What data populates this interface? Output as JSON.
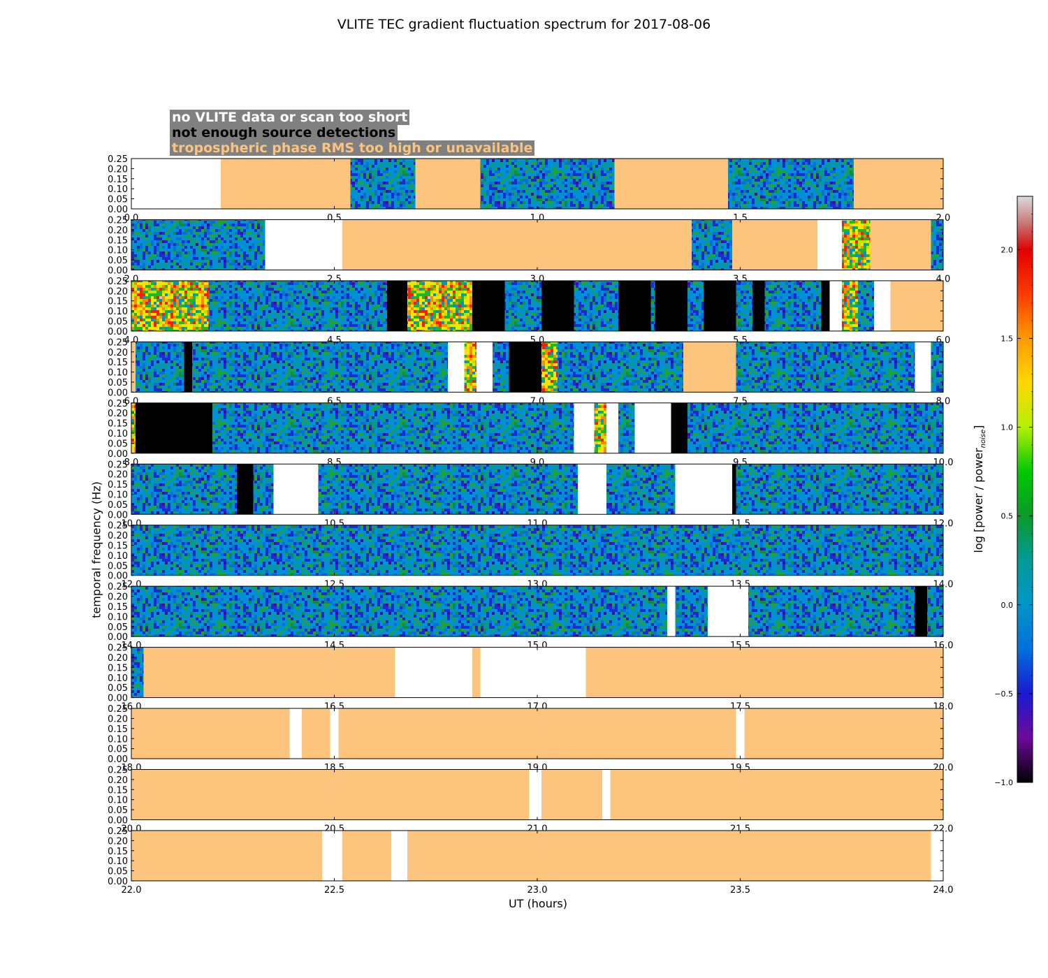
{
  "chart_data": {
    "type": "heatmap",
    "title": "VLITE TEC gradient fluctuation spectrum for 2017-08-06",
    "xlabel": "UT (hours)",
    "ylabel": "temporal frequency (Hz)",
    "colorbar": {
      "label": "log [power / power",
      "label_sub": "noise",
      "label_end": "]",
      "range": [
        -1.0,
        2.3
      ],
      "ticks": [
        "−1.0",
        "−0.5",
        "0.0",
        "0.5",
        "1.0",
        "1.5",
        "2.0"
      ],
      "tick_values": [
        -1.0,
        -0.5,
        0.0,
        0.5,
        1.0,
        1.5,
        2.0
      ]
    },
    "legend": [
      {
        "text": "no VLITE data or scan too short",
        "color": "#ffffff"
      },
      {
        "text": "not enough source detections",
        "color": "#000000"
      },
      {
        "text": "tropospheric phase RMS too high or unavailable",
        "color": "#fdc47d"
      }
    ],
    "yticks": [
      "0.00",
      "0.05",
      "0.10",
      "0.15",
      "0.20",
      "0.25"
    ],
    "ylim": [
      0,
      0.25
    ],
    "panels": [
      {
        "range": [
          0,
          2
        ],
        "xticks": [
          "0.0",
          "0.5",
          "1.0",
          "1.5",
          "2.0"
        ],
        "segments": [
          [
            0,
            0.22,
            "white"
          ],
          [
            0.22,
            0.54,
            "tan"
          ],
          [
            0.54,
            0.7,
            "data"
          ],
          [
            0.7,
            0.86,
            "tan"
          ],
          [
            0.86,
            1.19,
            "data"
          ],
          [
            1.19,
            1.47,
            "tan"
          ],
          [
            1.47,
            1.78,
            "data"
          ],
          [
            1.78,
            2.0,
            "tan"
          ]
        ]
      },
      {
        "range": [
          2,
          4
        ],
        "xticks": [
          "2.0",
          "2.5",
          "3.0",
          "3.5",
          "4.0"
        ],
        "segments": [
          [
            2.0,
            2.33,
            "data"
          ],
          [
            2.33,
            2.52,
            "white"
          ],
          [
            2.52,
            3.38,
            "tan"
          ],
          [
            3.38,
            3.48,
            "data"
          ],
          [
            3.48,
            3.69,
            "tan"
          ],
          [
            3.69,
            3.75,
            "white"
          ],
          [
            3.75,
            3.82,
            "hot"
          ],
          [
            3.82,
            3.97,
            "tan"
          ],
          [
            3.97,
            4.0,
            "data"
          ]
        ]
      },
      {
        "range": [
          4,
          6
        ],
        "xticks": [
          "4.0",
          "4.5",
          "5.0",
          "5.5",
          "6.0"
        ],
        "segments": [
          [
            4.0,
            4.19,
            "hot"
          ],
          [
            4.19,
            4.63,
            "data"
          ],
          [
            4.63,
            4.68,
            "black"
          ],
          [
            4.68,
            4.84,
            "hot"
          ],
          [
            4.84,
            4.92,
            "black"
          ],
          [
            4.92,
            5.01,
            "data"
          ],
          [
            5.01,
            5.09,
            "black"
          ],
          [
            5.09,
            5.2,
            "data"
          ],
          [
            5.2,
            5.28,
            "black"
          ],
          [
            5.28,
            5.29,
            "data"
          ],
          [
            5.29,
            5.37,
            "black"
          ],
          [
            5.37,
            5.41,
            "data"
          ],
          [
            5.41,
            5.49,
            "black"
          ],
          [
            5.49,
            5.53,
            "data"
          ],
          [
            5.53,
            5.56,
            "black"
          ],
          [
            5.56,
            5.7,
            "data"
          ],
          [
            5.7,
            5.72,
            "black"
          ],
          [
            5.72,
            5.75,
            "white"
          ],
          [
            5.75,
            5.79,
            "hot"
          ],
          [
            5.79,
            5.83,
            "data"
          ],
          [
            5.83,
            5.87,
            "white"
          ],
          [
            5.87,
            6.0,
            "tan"
          ]
        ]
      },
      {
        "range": [
          6,
          8
        ],
        "xticks": [
          "6.0",
          "6.5",
          "7.0",
          "7.5",
          "8.0"
        ],
        "segments": [
          [
            6.0,
            6.01,
            "tan"
          ],
          [
            6.01,
            6.13,
            "data"
          ],
          [
            6.13,
            6.15,
            "black"
          ],
          [
            6.15,
            6.78,
            "data"
          ],
          [
            6.78,
            6.82,
            "white"
          ],
          [
            6.82,
            6.85,
            "hot"
          ],
          [
            6.85,
            6.89,
            "white"
          ],
          [
            6.89,
            6.93,
            "data"
          ],
          [
            6.93,
            7.01,
            "black"
          ],
          [
            7.01,
            7.05,
            "hot"
          ],
          [
            7.05,
            7.36,
            "data"
          ],
          [
            7.36,
            7.49,
            "tan"
          ],
          [
            7.49,
            7.93,
            "data"
          ],
          [
            7.93,
            7.97,
            "white"
          ],
          [
            7.97,
            8.0,
            "data"
          ]
        ]
      },
      {
        "range": [
          8,
          10
        ],
        "xticks": [
          "8.0",
          "8.5",
          "9.0",
          "9.5",
          "10.0"
        ],
        "segments": [
          [
            8.0,
            8.01,
            "hot"
          ],
          [
            8.01,
            8.2,
            "black"
          ],
          [
            8.2,
            9.09,
            "data"
          ],
          [
            9.09,
            9.14,
            "white"
          ],
          [
            9.14,
            9.17,
            "hot"
          ],
          [
            9.17,
            9.2,
            "white"
          ],
          [
            9.2,
            9.24,
            "data"
          ],
          [
            9.24,
            9.33,
            "white"
          ],
          [
            9.33,
            9.37,
            "black"
          ],
          [
            9.37,
            10.0,
            "data"
          ]
        ]
      },
      {
        "range": [
          10,
          12
        ],
        "xticks": [
          "10.0",
          "10.5",
          "11.0",
          "11.5",
          "12.0"
        ],
        "segments": [
          [
            10.0,
            10.26,
            "data"
          ],
          [
            10.26,
            10.3,
            "black"
          ],
          [
            10.3,
            10.35,
            "data"
          ],
          [
            10.35,
            10.46,
            "white"
          ],
          [
            10.46,
            11.1,
            "data"
          ],
          [
            11.1,
            11.17,
            "white"
          ],
          [
            11.17,
            11.34,
            "data"
          ],
          [
            11.34,
            11.48,
            "white"
          ],
          [
            11.48,
            11.49,
            "black"
          ],
          [
            11.49,
            12.0,
            "data"
          ]
        ]
      },
      {
        "range": [
          12,
          14
        ],
        "xticks": [
          "12.0",
          "12.5",
          "13.0",
          "13.5",
          "14.0"
        ],
        "segments": [
          [
            12.0,
            14.0,
            "data"
          ]
        ]
      },
      {
        "range": [
          14,
          16
        ],
        "xticks": [
          "14.0",
          "14.5",
          "15.0",
          "15.5",
          "16.0"
        ],
        "segments": [
          [
            14.0,
            15.32,
            "data"
          ],
          [
            15.32,
            15.34,
            "white"
          ],
          [
            15.34,
            15.42,
            "data"
          ],
          [
            15.42,
            15.52,
            "white"
          ],
          [
            15.52,
            15.93,
            "data"
          ],
          [
            15.93,
            15.96,
            "black"
          ],
          [
            15.96,
            16.0,
            "data"
          ]
        ]
      },
      {
        "range": [
          16,
          18
        ],
        "xticks": [
          "16.0",
          "16.5",
          "17.0",
          "17.5",
          "18.0"
        ],
        "segments": [
          [
            16.0,
            16.03,
            "data"
          ],
          [
            16.03,
            16.65,
            "tan"
          ],
          [
            16.65,
            16.84,
            "white"
          ],
          [
            16.84,
            16.86,
            "tan"
          ],
          [
            16.86,
            17.12,
            "white"
          ],
          [
            17.12,
            18.0,
            "tan"
          ]
        ]
      },
      {
        "range": [
          18,
          20
        ],
        "xticks": [
          "18.0",
          "18.5",
          "19.0",
          "19.5",
          "20.0"
        ],
        "segments": [
          [
            18.0,
            18.39,
            "tan"
          ],
          [
            18.39,
            18.42,
            "white"
          ],
          [
            18.42,
            18.49,
            "tan"
          ],
          [
            18.49,
            18.51,
            "white"
          ],
          [
            18.51,
            19.49,
            "tan"
          ],
          [
            19.49,
            19.51,
            "white"
          ],
          [
            19.51,
            20.0,
            "tan"
          ]
        ]
      },
      {
        "range": [
          20,
          22
        ],
        "xticks": [
          "20.0",
          "20.5",
          "21.0",
          "21.5",
          "22.0"
        ],
        "segments": [
          [
            20.0,
            20.98,
            "tan"
          ],
          [
            20.98,
            21.01,
            "white"
          ],
          [
            21.01,
            21.16,
            "tan"
          ],
          [
            21.16,
            21.18,
            "white"
          ],
          [
            21.18,
            22.0,
            "tan"
          ]
        ]
      },
      {
        "range": [
          22,
          24
        ],
        "xticks": [
          "22.0",
          "22.5",
          "23.0",
          "23.5",
          "24.0"
        ],
        "segments": [
          [
            22.0,
            22.47,
            "tan"
          ],
          [
            22.47,
            22.52,
            "white"
          ],
          [
            22.52,
            22.64,
            "tan"
          ],
          [
            22.64,
            22.68,
            "white"
          ],
          [
            22.68,
            23.97,
            "tan"
          ],
          [
            23.97,
            24.0,
            "white"
          ]
        ]
      }
    ]
  }
}
